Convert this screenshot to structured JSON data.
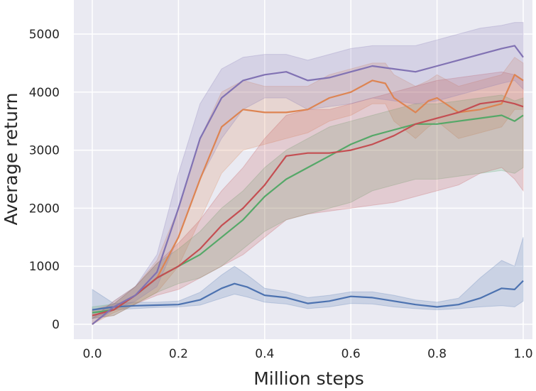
{
  "chart_data": {
    "type": "line",
    "title": "",
    "xlabel": "Million steps",
    "ylabel": "Average return",
    "xlim": [
      -0.04,
      1.01
    ],
    "ylim": [
      -300,
      5500
    ],
    "xticks": [
      "0.0",
      "0.2",
      "0.4",
      "0.6",
      "0.8",
      "1.0"
    ],
    "yticks": [
      "0",
      "1000",
      "2000",
      "3000",
      "4000",
      "5000"
    ],
    "grid": true,
    "legend": "none",
    "background_color": "#eaeaf2",
    "grid_color": "#ffffff",
    "series": [
      {
        "color": "#4c72b0",
        "x": [
          0.0,
          0.05,
          0.1,
          0.15,
          0.2,
          0.25,
          0.3,
          0.33,
          0.36,
          0.4,
          0.45,
          0.5,
          0.55,
          0.6,
          0.65,
          0.7,
          0.75,
          0.8,
          0.85,
          0.9,
          0.95,
          0.98,
          1.0
        ],
        "y": [
          250,
          300,
          320,
          330,
          340,
          420,
          620,
          700,
          640,
          500,
          460,
          360,
          400,
          480,
          460,
          400,
          340,
          300,
          340,
          450,
          620,
          600,
          750
        ],
        "lower": [
          100,
          250,
          270,
          290,
          300,
          330,
          450,
          520,
          470,
          380,
          350,
          270,
          300,
          360,
          350,
          300,
          270,
          250,
          270,
          300,
          320,
          300,
          400
        ],
        "upper": [
          600,
          360,
          380,
          380,
          400,
          550,
          850,
          1000,
          850,
          620,
          560,
          460,
          500,
          560,
          560,
          500,
          420,
          380,
          450,
          800,
          1100,
          1000,
          1500
        ]
      },
      {
        "color": "#dd8452",
        "x": [
          0.0,
          0.05,
          0.1,
          0.15,
          0.2,
          0.25,
          0.3,
          0.35,
          0.4,
          0.45,
          0.5,
          0.55,
          0.6,
          0.65,
          0.68,
          0.7,
          0.75,
          0.78,
          0.8,
          0.85,
          0.9,
          0.95,
          0.98,
          1.0
        ],
        "y": [
          0,
          300,
          500,
          800,
          1500,
          2500,
          3400,
          3700,
          3650,
          3650,
          3700,
          3900,
          4000,
          4200,
          4150,
          3900,
          3650,
          3850,
          3900,
          3650,
          3700,
          3800,
          4300,
          4200
        ],
        "lower": [
          0,
          200,
          350,
          550,
          1000,
          1800,
          2600,
          3000,
          3100,
          3200,
          3300,
          3500,
          3600,
          3800,
          3800,
          3500,
          3200,
          3400,
          3500,
          3200,
          3300,
          3400,
          3700,
          3700
        ],
        "upper": [
          100,
          400,
          650,
          1100,
          2000,
          3200,
          4000,
          4200,
          4100,
          4100,
          4100,
          4300,
          4400,
          4500,
          4500,
          4300,
          4100,
          4200,
          4300,
          4100,
          4200,
          4300,
          4600,
          4500
        ]
      },
      {
        "color": "#55a868",
        "x": [
          0.0,
          0.05,
          0.1,
          0.15,
          0.2,
          0.25,
          0.3,
          0.35,
          0.4,
          0.45,
          0.5,
          0.55,
          0.6,
          0.65,
          0.7,
          0.75,
          0.8,
          0.85,
          0.9,
          0.95,
          0.98,
          1.0
        ],
        "y": [
          200,
          250,
          500,
          800,
          1000,
          1200,
          1500,
          1800,
          2200,
          2500,
          2700,
          2900,
          3100,
          3250,
          3350,
          3450,
          3450,
          3500,
          3550,
          3600,
          3500,
          3600
        ],
        "lower": [
          100,
          150,
          350,
          550,
          700,
          800,
          1000,
          1300,
          1600,
          1800,
          1900,
          2000,
          2100,
          2300,
          2400,
          2500,
          2500,
          2550,
          2600,
          2650,
          2600,
          2700
        ],
        "upper": [
          300,
          350,
          650,
          1050,
          1300,
          1600,
          2000,
          2300,
          2700,
          3000,
          3200,
          3400,
          3500,
          3600,
          3700,
          3800,
          3800,
          3850,
          3900,
          3950,
          3850,
          3900
        ]
      },
      {
        "color": "#c44e52",
        "x": [
          0.0,
          0.05,
          0.1,
          0.15,
          0.2,
          0.25,
          0.3,
          0.35,
          0.4,
          0.45,
          0.5,
          0.55,
          0.6,
          0.65,
          0.7,
          0.75,
          0.8,
          0.85,
          0.9,
          0.95,
          0.98,
          1.0
        ],
        "y": [
          150,
          250,
          500,
          800,
          1000,
          1300,
          1700,
          2000,
          2400,
          2900,
          2950,
          2950,
          3000,
          3100,
          3250,
          3450,
          3550,
          3650,
          3800,
          3850,
          3800,
          3750
        ],
        "lower": [
          100,
          150,
          350,
          500,
          600,
          800,
          1000,
          1200,
          1500,
          1800,
          1900,
          1950,
          2000,
          2050,
          2100,
          2200,
          2300,
          2400,
          2600,
          2700,
          2500,
          2300
        ],
        "upper": [
          250,
          350,
          650,
          1050,
          1400,
          1800,
          2300,
          2700,
          3200,
          3600,
          3700,
          3700,
          3800,
          3900,
          4000,
          4100,
          4200,
          4250,
          4300,
          4350,
          4300,
          4200
        ]
      },
      {
        "color": "#8172b3",
        "x": [
          0.0,
          0.05,
          0.1,
          0.15,
          0.2,
          0.25,
          0.3,
          0.35,
          0.4,
          0.45,
          0.5,
          0.55,
          0.6,
          0.65,
          0.7,
          0.75,
          0.8,
          0.85,
          0.9,
          0.95,
          0.98,
          1.0
        ],
        "y": [
          0,
          300,
          500,
          900,
          2000,
          3200,
          3900,
          4200,
          4300,
          4350,
          4200,
          4250,
          4350,
          4450,
          4400,
          4350,
          4450,
          4550,
          4650,
          4750,
          4800,
          4600
        ],
        "lower": [
          0,
          250,
          400,
          650,
          1500,
          2500,
          3200,
          3700,
          3900,
          3900,
          3700,
          3750,
          3800,
          3900,
          3850,
          3800,
          3850,
          3950,
          4050,
          4150,
          4200,
          4050
        ],
        "upper": [
          100,
          400,
          650,
          1200,
          2600,
          3800,
          4400,
          4600,
          4650,
          4650,
          4550,
          4650,
          4750,
          4800,
          4800,
          4800,
          4900,
          5000,
          5100,
          5150,
          5200,
          5200
        ]
      }
    ]
  }
}
